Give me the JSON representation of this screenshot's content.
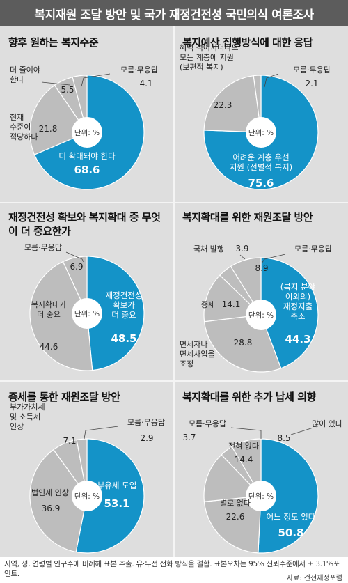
{
  "header": {
    "title": "복지재원 조달 방안 및 국가 재정건전성 국민의식 여론조사"
  },
  "unit_label": "단위: %",
  "colors": {
    "blue": "#1493c8",
    "gray": "#bdbdbd",
    "panel": "#dcdcdc",
    "header": "#5c5c5c"
  },
  "chart_data": [
    {
      "type": "pie",
      "title": "향후 원하는 복지수준",
      "slices": [
        {
          "label": "더 확대돼야 한다",
          "value": 68.6
        },
        {
          "label": "현재 수준이 적당하다",
          "value": 21.8
        },
        {
          "label": "더 줄여야 한다",
          "value": 5.5
        },
        {
          "label": "모름·무응답",
          "value": 4.1
        }
      ]
    },
    {
      "type": "pie",
      "title": "복지예산 집행방식에 대한 응답",
      "slices": [
        {
          "label": "어려운 계층 우선 지원 (선별적 복지)",
          "value": 75.6
        },
        {
          "label": "혜택 적어지더라도 모든 계층에 지원 (보편적 복지)",
          "value": 22.3
        },
        {
          "label": "모름·무응답",
          "value": 2.1
        }
      ]
    },
    {
      "type": "pie",
      "title": "재정건전성 확보와 복지확대 중 무엇이 더 중요한가",
      "slices": [
        {
          "label": "재정건전성 확보가 더 중요",
          "value": 48.5
        },
        {
          "label": "복지확대가 더 중요",
          "value": 44.6
        },
        {
          "label": "모름·무응답",
          "value": 6.9
        }
      ]
    },
    {
      "type": "pie",
      "title": "복지확대를 위한 재원조달 방안",
      "slices": [
        {
          "label": "(복지 분야 이외의) 재정지출 축소",
          "value": 44.3
        },
        {
          "label": "면세자나 면세사업을 조정",
          "value": 28.8
        },
        {
          "label": "증세",
          "value": 14.1
        },
        {
          "label": "국채 발행",
          "value": 3.9
        },
        {
          "label": "모름·무응답",
          "value": 8.9
        }
      ]
    },
    {
      "type": "pie",
      "title": "증세를 통한 재원조달 방안",
      "slices": [
        {
          "label": "부유세 도입",
          "value": 53.1
        },
        {
          "label": "법인세 인상",
          "value": 36.9
        },
        {
          "label": "부가가치세 및 소득세 인상",
          "value": 7.1
        },
        {
          "label": "모름·무응답",
          "value": 2.9
        }
      ]
    },
    {
      "type": "pie",
      "title": "복지확대를 위한 추가 납세 의향",
      "slices": [
        {
          "label": "어느 정도 있다",
          "value": 50.8
        },
        {
          "label": "별로 없다",
          "value": 22.6
        },
        {
          "label": "전혀 없다",
          "value": 14.4
        },
        {
          "label": "모름·무응답",
          "value": 3.7
        },
        {
          "label": "많이 있다",
          "value": 8.5
        }
      ]
    }
  ],
  "footer": {
    "note": "지역, 성, 연령별 인구수에 비례해 표본 추출. 유·무선 전화 방식을 결합. 표본오차는 95% 신뢰수준에서 ± 3.1%포인트.",
    "source": "자료: 건전재정포럼"
  }
}
